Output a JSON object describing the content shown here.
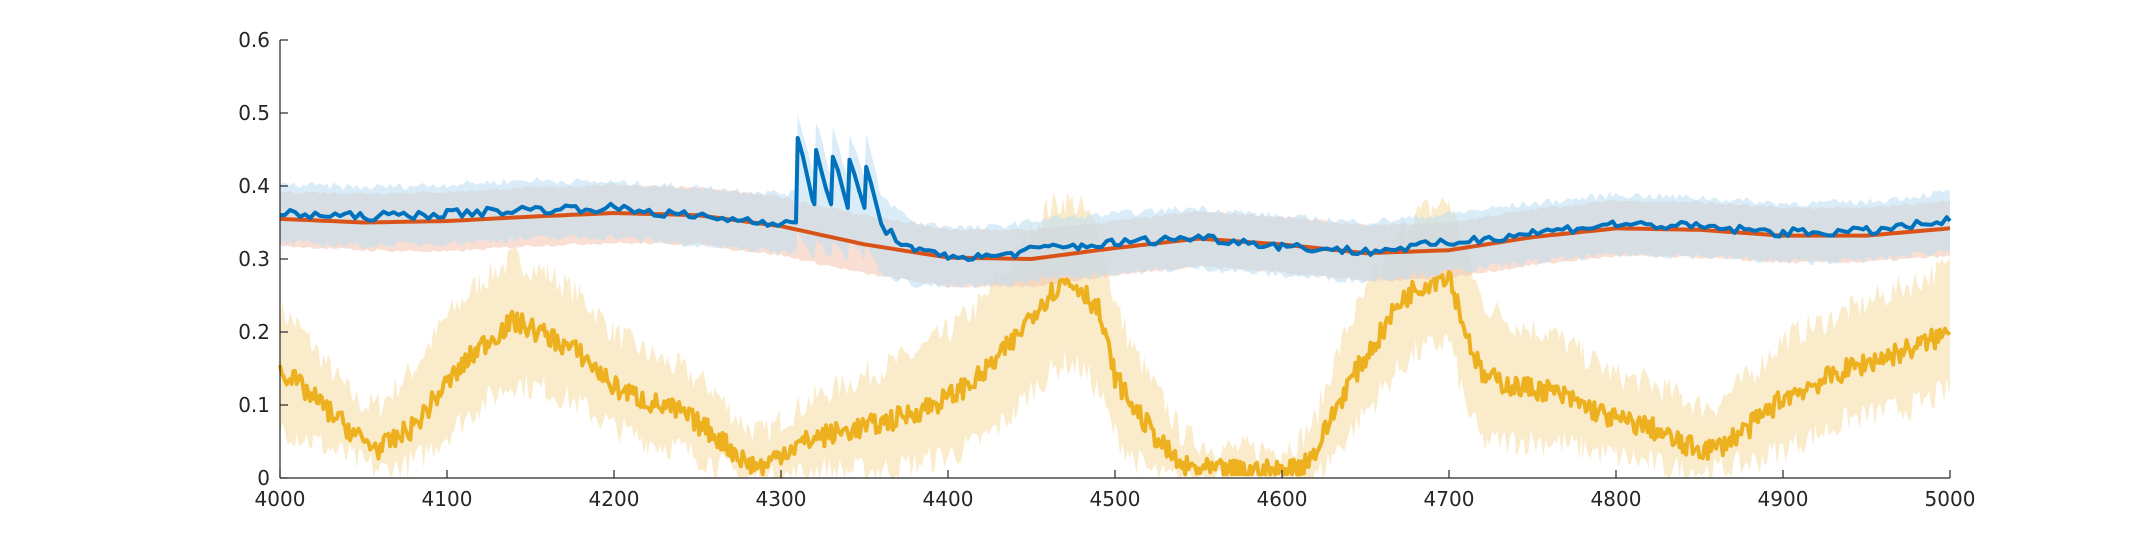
{
  "chart_data": {
    "type": "line",
    "title": "",
    "xlabel": "",
    "ylabel": "",
    "xlim": [
      4000,
      5000
    ],
    "ylim": [
      0,
      0.6
    ],
    "x_ticks": [
      "4000",
      "4100",
      "4200",
      "4300",
      "4400",
      "4500",
      "4600",
      "4700",
      "4800",
      "4900",
      "5000"
    ],
    "y_ticks": [
      "0",
      "0.1",
      "0.2",
      "0.3",
      "0.4",
      "0.5",
      "0.6"
    ],
    "grid": false,
    "legend": "none",
    "series": [
      {
        "color": "#EDB120",
        "band_color": "#F6DDA0",
        "x": [
          4000,
          4010,
          4020,
          4030,
          4040,
          4050,
          4060,
          4080,
          4100,
          4120,
          4140,
          4160,
          4180,
          4200,
          4220,
          4240,
          4260,
          4270,
          4280,
          4290,
          4300,
          4320,
          4340,
          4360,
          4380,
          4400,
          4420,
          4440,
          4450,
          4460,
          4470,
          4480,
          4490,
          4500,
          4510,
          4520,
          4530,
          4540,
          4560,
          4580,
          4600,
          4610,
          4620,
          4630,
          4640,
          4650,
          4660,
          4670,
          4680,
          4690,
          4700,
          4710,
          4720,
          4740,
          4760,
          4780,
          4800,
          4820,
          4840,
          4850,
          4860,
          4880,
          4900,
          4920,
          4940,
          4960,
          4980,
          5000
        ],
        "y": [
          0.15,
          0.13,
          0.11,
          0.09,
          0.07,
          0.05,
          0.04,
          0.07,
          0.13,
          0.18,
          0.215,
          0.195,
          0.17,
          0.125,
          0.105,
          0.09,
          0.06,
          0.04,
          0.02,
          0.015,
          0.035,
          0.055,
          0.065,
          0.075,
          0.09,
          0.11,
          0.14,
          0.19,
          0.225,
          0.25,
          0.27,
          0.26,
          0.23,
          0.14,
          0.1,
          0.07,
          0.04,
          0.015,
          0.01,
          0.01,
          0.01,
          0.015,
          0.035,
          0.085,
          0.13,
          0.165,
          0.2,
          0.24,
          0.26,
          0.27,
          0.28,
          0.2,
          0.14,
          0.125,
          0.12,
          0.1,
          0.08,
          0.07,
          0.045,
          0.04,
          0.04,
          0.07,
          0.11,
          0.13,
          0.15,
          0.165,
          0.18,
          0.2
        ],
        "band_upper": [
          0.23,
          0.21,
          0.18,
          0.15,
          0.12,
          0.1,
          0.1,
          0.15,
          0.22,
          0.27,
          0.3,
          0.28,
          0.25,
          0.2,
          0.17,
          0.15,
          0.12,
          0.09,
          0.07,
          0.06,
          0.08,
          0.11,
          0.13,
          0.15,
          0.17,
          0.2,
          0.24,
          0.3,
          0.34,
          0.37,
          0.38,
          0.37,
          0.34,
          0.24,
          0.18,
          0.14,
          0.1,
          0.06,
          0.04,
          0.04,
          0.04,
          0.05,
          0.08,
          0.15,
          0.21,
          0.25,
          0.29,
          0.33,
          0.36,
          0.37,
          0.38,
          0.31,
          0.24,
          0.21,
          0.2,
          0.17,
          0.14,
          0.13,
          0.11,
          0.1,
          0.1,
          0.14,
          0.19,
          0.21,
          0.23,
          0.25,
          0.27,
          0.29
        ],
        "band_lower": [
          0.07,
          0.06,
          0.05,
          0.04,
          0.03,
          0.02,
          0.01,
          0.02,
          0.06,
          0.1,
          0.13,
          0.12,
          0.1,
          0.07,
          0.05,
          0.04,
          0.02,
          0.01,
          0.0,
          0.0,
          0.0,
          0.01,
          0.01,
          0.01,
          0.02,
          0.03,
          0.05,
          0.09,
          0.12,
          0.14,
          0.16,
          0.15,
          0.12,
          0.06,
          0.03,
          0.01,
          0.0,
          0.0,
          0.0,
          0.0,
          0.0,
          0.0,
          0.0,
          0.03,
          0.06,
          0.09,
          0.12,
          0.15,
          0.17,
          0.18,
          0.19,
          0.1,
          0.05,
          0.05,
          0.05,
          0.04,
          0.03,
          0.02,
          0.01,
          0.01,
          0.01,
          0.02,
          0.04,
          0.06,
          0.08,
          0.09,
          0.1,
          0.12
        ]
      },
      {
        "color": "#D95319",
        "band_color": "#F5C8B6",
        "x": [
          4000,
          4050,
          4100,
          4150,
          4200,
          4250,
          4300,
          4350,
          4400,
          4450,
          4500,
          4550,
          4600,
          4650,
          4700,
          4750,
          4800,
          4850,
          4900,
          4950,
          5000
        ],
        "y": [
          0.355,
          0.35,
          0.352,
          0.358,
          0.363,
          0.36,
          0.345,
          0.32,
          0.302,
          0.3,
          0.315,
          0.328,
          0.32,
          0.308,
          0.312,
          0.33,
          0.342,
          0.34,
          0.332,
          0.332,
          0.342
        ],
        "band_upper": [
          0.392,
          0.39,
          0.392,
          0.398,
          0.402,
          0.398,
          0.385,
          0.36,
          0.34,
          0.34,
          0.352,
          0.365,
          0.358,
          0.346,
          0.35,
          0.368,
          0.38,
          0.378,
          0.37,
          0.37,
          0.38
        ],
        "band_lower": [
          0.318,
          0.312,
          0.31,
          0.318,
          0.322,
          0.32,
          0.305,
          0.28,
          0.262,
          0.262,
          0.278,
          0.29,
          0.282,
          0.27,
          0.274,
          0.292,
          0.304,
          0.302,
          0.295,
          0.296,
          0.304
        ]
      },
      {
        "color": "#0072BD",
        "band_color": "#BFDFF2",
        "x": [
          4000,
          4050,
          4100,
          4150,
          4200,
          4250,
          4300,
          4309,
          4310,
          4320,
          4321,
          4330,
          4331,
          4340,
          4341,
          4350,
          4351,
          4360,
          4380,
          4400,
          4420,
          4440,
          4460,
          4480,
          4500,
          4550,
          4600,
          4650,
          4700,
          4750,
          4800,
          4850,
          4900,
          4950,
          5000
        ],
        "y": [
          0.362,
          0.358,
          0.362,
          0.368,
          0.37,
          0.358,
          0.35,
          0.35,
          0.463,
          0.375,
          0.45,
          0.375,
          0.44,
          0.37,
          0.435,
          0.37,
          0.43,
          0.345,
          0.31,
          0.305,
          0.302,
          0.308,
          0.316,
          0.318,
          0.322,
          0.33,
          0.318,
          0.31,
          0.322,
          0.336,
          0.348,
          0.344,
          0.336,
          0.338,
          0.352
        ],
        "band_upper": [
          0.402,
          0.398,
          0.402,
          0.408,
          0.405,
          0.398,
          0.39,
          0.39,
          0.5,
          0.415,
          0.49,
          0.415,
          0.48,
          0.41,
          0.475,
          0.41,
          0.47,
          0.385,
          0.35,
          0.345,
          0.342,
          0.348,
          0.356,
          0.358,
          0.362,
          0.37,
          0.358,
          0.35,
          0.362,
          0.376,
          0.388,
          0.384,
          0.376,
          0.378,
          0.392
        ],
        "band_lower": [
          0.322,
          0.318,
          0.322,
          0.328,
          0.33,
          0.318,
          0.31,
          0.31,
          0.34,
          0.3,
          0.33,
          0.3,
          0.33,
          0.3,
          0.33,
          0.3,
          0.32,
          0.28,
          0.265,
          0.262,
          0.262,
          0.266,
          0.274,
          0.276,
          0.28,
          0.288,
          0.278,
          0.27,
          0.282,
          0.296,
          0.306,
          0.304,
          0.296,
          0.298,
          0.312
        ]
      }
    ]
  }
}
